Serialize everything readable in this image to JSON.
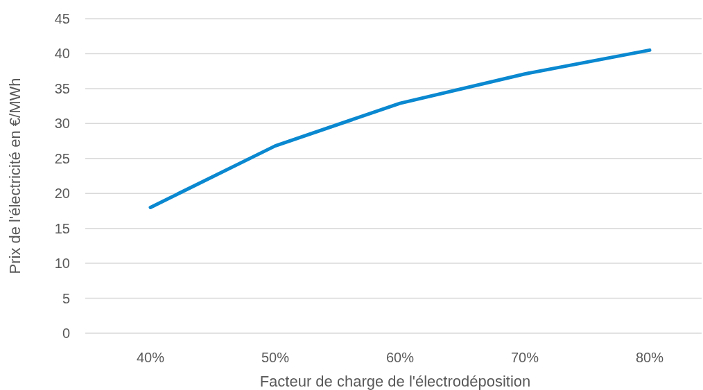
{
  "chart_data": {
    "type": "line",
    "xlabel": "Facteur de charge de l'électrodéposition",
    "ylabel": "Prix de l'électricité en €/MWh",
    "categories": [
      "40%",
      "50%",
      "60%",
      "70%",
      "80%"
    ],
    "series": [
      {
        "color": "#0a88d0",
        "values": [
          18.0,
          26.8,
          32.9,
          37.1,
          40.5
        ]
      }
    ],
    "ylim": [
      0,
      45
    ],
    "yticks": [
      0,
      5,
      10,
      15,
      20,
      25,
      30,
      35,
      40,
      45
    ],
    "grid": "y",
    "marker": "none",
    "line_style": "solid"
  }
}
